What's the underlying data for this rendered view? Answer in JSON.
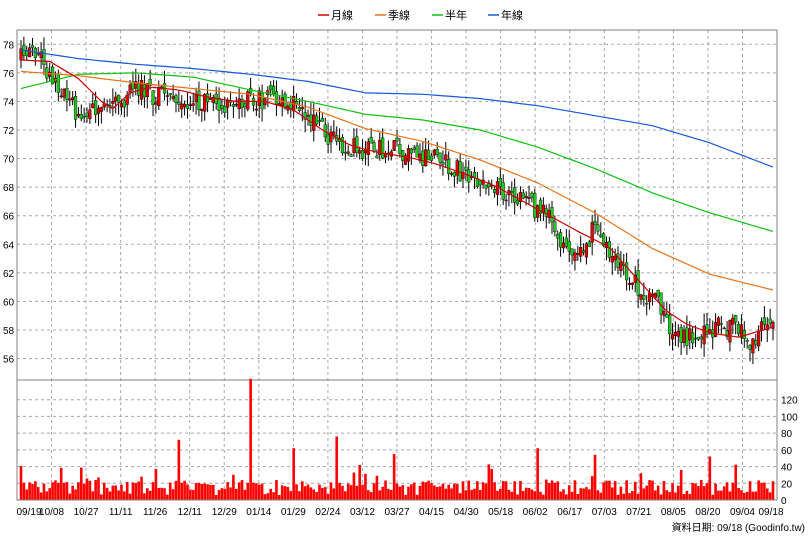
{
  "chart_data": [
    {
      "type": "candlestick",
      "legend": [
        {
          "name": "月線",
          "color": "#cc0000"
        },
        {
          "name": "季線",
          "color": "#e8741a"
        },
        {
          "name": "半年",
          "color": "#10c010"
        },
        {
          "name": "年線",
          "color": "#1858d8"
        }
      ],
      "legend_position": "top-center",
      "ylim": [
        54.5,
        79
      ],
      "y_ticks": [
        "56",
        "58",
        "60",
        "62",
        "64",
        "66",
        "68",
        "70",
        "72",
        "74",
        "76",
        "78"
      ],
      "x_ticks": [
        "09/19",
        "10/08",
        "10/27",
        "11/11",
        "11/26",
        "12/11",
        "12/29",
        "01/14",
        "01/29",
        "02/24",
        "03/12",
        "03/27",
        "04/15",
        "04/30",
        "05/18",
        "06/02",
        "06/17",
        "07/03",
        "07/21",
        "08/05",
        "08/20",
        "09/04",
        "09/18"
      ],
      "close_points": [
        [
          0,
          77.2
        ],
        [
          6,
          77.5
        ],
        [
          12,
          75.0
        ],
        [
          20,
          73.2
        ],
        [
          28,
          73.5
        ],
        [
          35,
          73.8
        ],
        [
          40,
          75.0
        ],
        [
          46,
          74.4
        ],
        [
          55,
          74.2
        ],
        [
          65,
          74.1
        ],
        [
          72,
          73.6
        ],
        [
          79,
          74.0
        ],
        [
          88,
          74.3
        ],
        [
          96,
          73.6
        ],
        [
          104,
          72.1
        ],
        [
          112,
          70.8
        ],
        [
          120,
          70.6
        ],
        [
          128,
          70.7
        ],
        [
          136,
          70.3
        ],
        [
          144,
          70.0
        ],
        [
          152,
          69.2
        ],
        [
          160,
          68.6
        ],
        [
          168,
          67.8
        ],
        [
          176,
          66.9
        ],
        [
          184,
          65.8
        ],
        [
          190,
          63.8
        ],
        [
          196,
          63.1
        ],
        [
          200,
          65.6
        ],
        [
          205,
          63.4
        ],
        [
          210,
          62.3
        ],
        [
          216,
          60.6
        ],
        [
          221,
          60.2
        ],
        [
          226,
          58.4
        ],
        [
          232,
          57.4
        ],
        [
          238,
          57.6
        ],
        [
          244,
          58.3
        ],
        [
          250,
          58.1
        ],
        [
          255,
          57.0
        ],
        [
          258,
          58.6
        ],
        [
          262,
          58.9
        ]
      ],
      "ma_month": [
        [
          0,
          76.9
        ],
        [
          10,
          76.8
        ],
        [
          20,
          75.6
        ],
        [
          28,
          74.0
        ],
        [
          32,
          73.5
        ],
        [
          38,
          74.6
        ],
        [
          45,
          75.0
        ],
        [
          55,
          74.8
        ],
        [
          65,
          74.3
        ],
        [
          75,
          74.0
        ],
        [
          85,
          74.0
        ],
        [
          95,
          73.4
        ],
        [
          105,
          72.0
        ],
        [
          115,
          70.9
        ],
        [
          125,
          70.4
        ],
        [
          135,
          70.1
        ],
        [
          145,
          69.6
        ],
        [
          155,
          68.9
        ],
        [
          165,
          68.1
        ],
        [
          175,
          67.0
        ],
        [
          185,
          65.9
        ],
        [
          195,
          64.8
        ],
        [
          205,
          63.8
        ],
        [
          215,
          61.5
        ],
        [
          225,
          59.3
        ],
        [
          232,
          58.4
        ],
        [
          240,
          57.8
        ],
        [
          250,
          57.5
        ],
        [
          262,
          58.2
        ]
      ],
      "ma_quarter": [
        [
          0,
          76.1
        ],
        [
          20,
          75.8
        ],
        [
          40,
          75.3
        ],
        [
          60,
          74.9
        ],
        [
          80,
          74.5
        ],
        [
          100,
          73.6
        ],
        [
          120,
          72.1
        ],
        [
          140,
          71.2
        ],
        [
          160,
          69.9
        ],
        [
          180,
          68.3
        ],
        [
          200,
          66.2
        ],
        [
          220,
          63.7
        ],
        [
          240,
          61.9
        ],
        [
          262,
          60.8
        ]
      ],
      "ma_half": [
        [
          0,
          74.9
        ],
        [
          20,
          75.9
        ],
        [
          40,
          76.0
        ],
        [
          60,
          75.7
        ],
        [
          80,
          74.8
        ],
        [
          100,
          74.0
        ],
        [
          120,
          73.1
        ],
        [
          140,
          72.7
        ],
        [
          160,
          72.0
        ],
        [
          180,
          70.8
        ],
        [
          200,
          69.3
        ],
        [
          220,
          67.6
        ],
        [
          240,
          66.2
        ],
        [
          262,
          64.9
        ]
      ],
      "ma_year": [
        [
          0,
          77.6
        ],
        [
          20,
          77.0
        ],
        [
          40,
          76.6
        ],
        [
          60,
          76.3
        ],
        [
          80,
          75.9
        ],
        [
          100,
          75.4
        ],
        [
          120,
          74.6
        ],
        [
          140,
          74.5
        ],
        [
          160,
          74.2
        ],
        [
          180,
          73.7
        ],
        [
          200,
          73.0
        ],
        [
          220,
          72.3
        ],
        [
          240,
          71.1
        ],
        [
          262,
          69.4
        ]
      ]
    },
    {
      "type": "bar",
      "ylim": [
        0,
        140
      ],
      "y_ticks": [
        "0",
        "20",
        "40",
        "60",
        "80",
        "100",
        "120"
      ],
      "volume_peaks": [
        [
          80,
          145
        ],
        [
          95,
          62
        ],
        [
          110,
          76
        ],
        [
          55,
          72
        ],
        [
          130,
          55
        ],
        [
          180,
          62
        ],
        [
          200,
          54
        ],
        [
          240,
          52
        ]
      ],
      "bar_color": "#ff0000"
    }
  ],
  "footer": "資料日期: 09/18 (Goodinfo.tw)"
}
